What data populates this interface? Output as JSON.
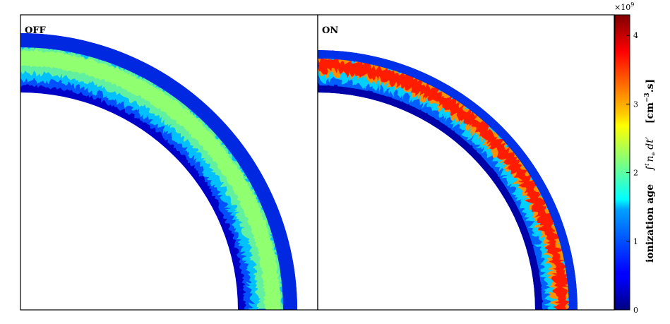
{
  "chart_data": [
    {
      "type": "heatmap",
      "panel_label": "OFF",
      "description_colors": [
        "#0000a0",
        "#00aaff",
        "#7fff7f"
      ],
      "band": "shell"
    },
    {
      "type": "heatmap",
      "panel_label": "ON",
      "band": "shell"
    }
  ],
  "colorbar": {
    "label_main": "ionization age",
    "label_integral": "∫",
    "label_integral_lower": "t",
    "label_integral_sub": "s",
    "label_integral_upper": "t",
    "label_integrand": "n",
    "label_integrand_sub": "e",
    "label_d": "dt′",
    "label_units": "[cm",
    "label_units_exp": "−3",
    "label_units_end": ".s]",
    "multiplier": "×10",
    "multiplier_exp": "9",
    "ticks": [
      0,
      1,
      2,
      3,
      4
    ],
    "range": [
      0,
      4.3
    ],
    "colormap": "jet"
  }
}
